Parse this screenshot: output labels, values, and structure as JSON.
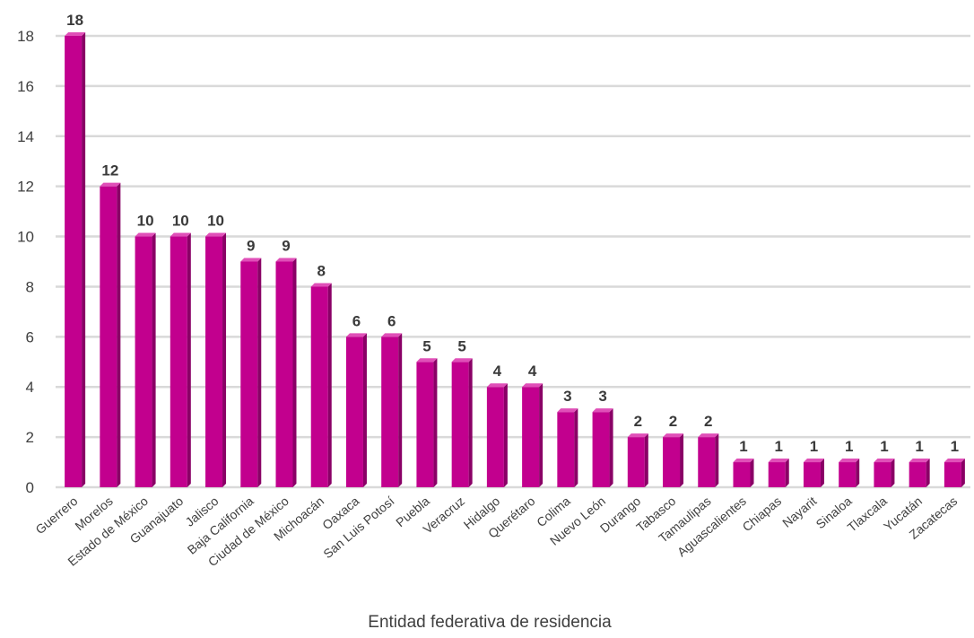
{
  "chart_data": {
    "type": "bar",
    "title": "",
    "xlabel": "Entidad federativa de residencia",
    "ylabel": "",
    "ylim": [
      0,
      18
    ],
    "yticks": [
      0,
      2,
      4,
      6,
      8,
      10,
      12,
      14,
      16,
      18
    ],
    "grid": true,
    "legend": "none",
    "bar_color": "#c2008e",
    "bar_side_color": "#8a0066",
    "bar_top_color": "#e04fb8",
    "categories": [
      "Guerrero",
      "Morelos",
      "Estado de México",
      "Guanajuato",
      "Jalisco",
      "Baja California",
      "Ciudad de México",
      "Michoacán",
      "Oaxaca",
      "San Luis Potosí",
      "Puebla",
      "Veracruz",
      "Hidalgo",
      "Querétaro",
      "Colima",
      "Nuevo León",
      "Durango",
      "Tabasco",
      "Tamaulipas",
      "Aguascalientes",
      "Chiapas",
      "Nayarit",
      "Sinaloa",
      "Tlaxcala",
      "Yucatán",
      "Zacatecas"
    ],
    "values": [
      18,
      12,
      10,
      10,
      10,
      9,
      9,
      8,
      6,
      6,
      5,
      5,
      4,
      4,
      3,
      3,
      2,
      2,
      2,
      1,
      1,
      1,
      1,
      1,
      1,
      1
    ]
  }
}
